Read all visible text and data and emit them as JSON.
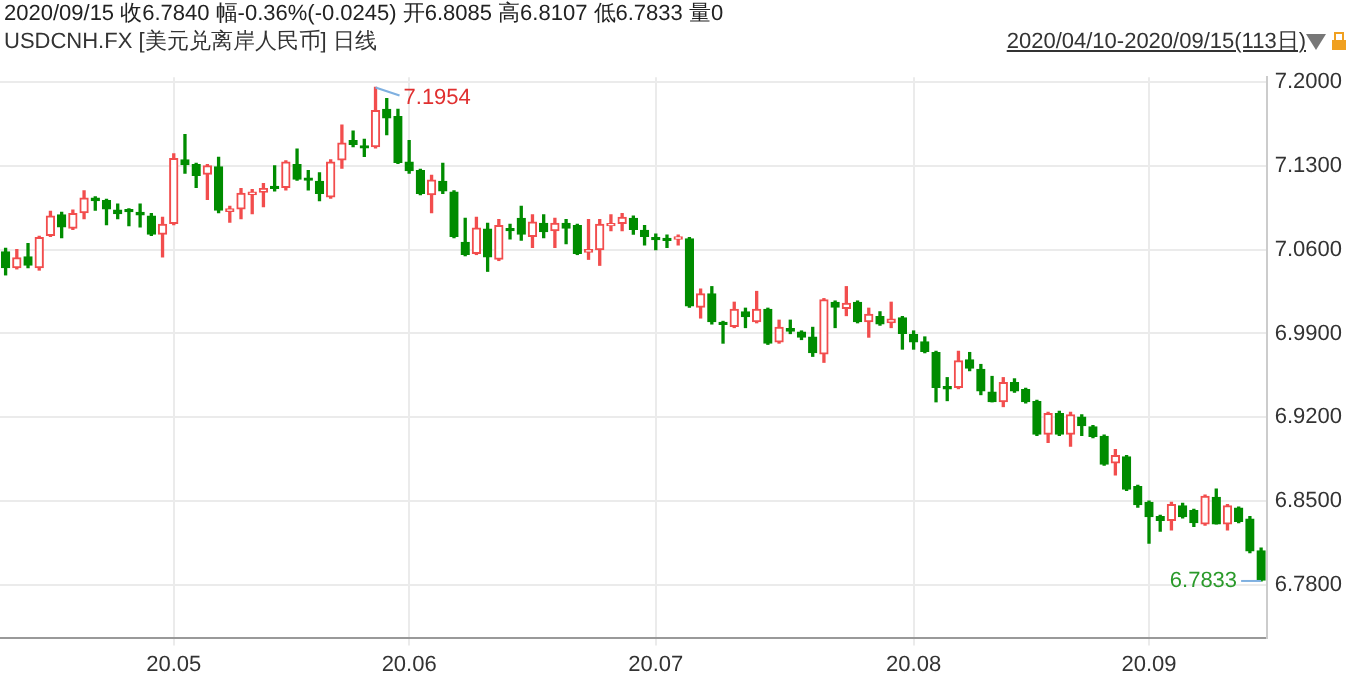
{
  "chart_data": {
    "type": "candlestick",
    "title": "USDCNH.FX [美元兑离岸人民币] 日线",
    "subtitle": "2020/09/15 收6.7840 幅-0.36%(-0.0245) 开6.8085 高6.8107 低6.7833 量0",
    "annotations": [
      "2020/04/10-2020/09/15(113日)",
      "7.1954",
      "6.7833"
    ],
    "categories": [
      null,
      null,
      null,
      null,
      null,
      null,
      null,
      null,
      null,
      null,
      null,
      null,
      null,
      null,
      null,
      "20.05",
      null,
      null,
      null,
      null,
      null,
      null,
      null,
      null,
      null,
      null,
      null,
      null,
      null,
      null,
      null,
      null,
      null,
      null,
      null,
      null,
      "20.06",
      null,
      null,
      null,
      null,
      null,
      null,
      null,
      null,
      null,
      null,
      null,
      null,
      null,
      null,
      null,
      null,
      null,
      null,
      null,
      null,
      null,
      "20.07",
      null,
      null,
      null,
      null,
      null,
      null,
      null,
      null,
      null,
      null,
      null,
      null,
      null,
      null,
      null,
      null,
      null,
      null,
      null,
      null,
      null,
      null,
      "20.08",
      null,
      null,
      null,
      null,
      null,
      null,
      null,
      null,
      null,
      null,
      null,
      null,
      null,
      null,
      null,
      null,
      null,
      null,
      null,
      null,
      "20.09",
      null,
      null,
      null,
      null,
      null,
      null,
      null,
      null,
      null,
      null
    ],
    "ohlc": [
      [
        7.058,
        7.061,
        7.039,
        7.045
      ],
      [
        7.045,
        7.06,
        7.044,
        7.053
      ],
      [
        7.054,
        7.065,
        7.045,
        7.047
      ],
      [
        7.045,
        7.071,
        7.043,
        7.07
      ],
      [
        7.072,
        7.092,
        7.071,
        7.088
      ],
      [
        7.089,
        7.091,
        7.07,
        7.079
      ],
      [
        7.078,
        7.093,
        7.077,
        7.09
      ],
      [
        7.091,
        7.109,
        7.086,
        7.103
      ],
      [
        7.103,
        7.104,
        7.093,
        7.101
      ],
      [
        7.101,
        7.102,
        7.081,
        7.094
      ],
      [
        7.093,
        7.098,
        7.086,
        7.09
      ],
      [
        7.0922,
        7.094,
        7.08,
        7.0918
      ],
      [
        7.091,
        7.098,
        7.079,
        7.089
      ],
      [
        7.088,
        7.09,
        7.072,
        7.073
      ],
      [
        7.073,
        7.087,
        7.054,
        7.081
      ],
      [
        7.082,
        7.14,
        7.081,
        7.136
      ],
      [
        7.135,
        7.156,
        7.124,
        7.131
      ],
      [
        7.131,
        7.132,
        7.112,
        7.122
      ],
      [
        7.123,
        7.131,
        7.102,
        7.13
      ],
      [
        7.129,
        7.137,
        7.091,
        7.093
      ],
      [
        7.092,
        7.096,
        7.083,
        7.094
      ],
      [
        7.094,
        7.111,
        7.086,
        7.107
      ],
      [
        7.106,
        7.11,
        7.09,
        7.108
      ],
      [
        7.108,
        7.115,
        7.096,
        7.111
      ],
      [
        7.1113,
        7.13,
        7.109,
        7.1112
      ],
      [
        7.112,
        7.134,
        7.11,
        7.133
      ],
      [
        7.131,
        7.144,
        7.118,
        7.119
      ],
      [
        7.1182,
        7.126,
        7.11,
        7.118
      ],
      [
        7.117,
        7.124,
        7.101,
        7.107
      ],
      [
        7.104,
        7.135,
        7.103,
        7.133
      ],
      [
        7.135,
        7.164,
        7.128,
        7.149
      ],
      [
        7.151,
        7.159,
        7.146,
        7.148
      ],
      [
        7.146,
        7.152,
        7.138,
        7.145
      ],
      [
        7.146,
        7.1954,
        7.145,
        7.176
      ],
      [
        7.177,
        7.186,
        7.156,
        7.17
      ],
      [
        7.171,
        7.177,
        7.132,
        7.133
      ],
      [
        7.133,
        7.151,
        7.124,
        7.126
      ],
      [
        7.126,
        7.127,
        7.106,
        7.107
      ],
      [
        7.106,
        7.122,
        7.091,
        7.118
      ],
      [
        7.117,
        7.132,
        7.107,
        7.109
      ],
      [
        7.108,
        7.109,
        7.07,
        7.071
      ],
      [
        7.066,
        7.086,
        7.055,
        7.056
      ],
      [
        7.057,
        7.087,
        7.056,
        7.078
      ],
      [
        7.077,
        7.082,
        7.042,
        7.054
      ],
      [
        7.052,
        7.085,
        7.051,
        7.08
      ],
      [
        7.0761,
        7.081,
        7.069,
        7.0759
      ],
      [
        7.086,
        7.096,
        7.068,
        7.073
      ],
      [
        7.071,
        7.089,
        7.062,
        7.083
      ],
      [
        7.082,
        7.089,
        7.07,
        7.075
      ],
      [
        7.076,
        7.086,
        7.062,
        7.082
      ],
      [
        7.082,
        7.085,
        7.065,
        7.078
      ],
      [
        7.08,
        7.081,
        7.056,
        7.057
      ],
      [
        7.058,
        7.085,
        7.052,
        7.06
      ],
      [
        7.06,
        7.085,
        7.047,
        7.081
      ],
      [
        7.08,
        7.089,
        7.076,
        7.081
      ],
      [
        7.082,
        7.09,
        7.076,
        7.087
      ],
      [
        7.086,
        7.088,
        7.073,
        7.077
      ],
      [
        7.076,
        7.08,
        7.064,
        7.071
      ],
      [
        7.0686,
        7.073,
        7.06,
        7.0684
      ],
      [
        7.068,
        7.072,
        7.062,
        7.0678
      ],
      [
        7.0689,
        7.072,
        7.064,
        7.0692
      ],
      [
        7.069,
        7.07,
        7.012,
        7.013
      ],
      [
        7.012,
        7.027,
        7.003,
        7.023
      ],
      [
        7.023,
        7.029,
        6.998,
        7.0
      ],
      [
        6.9978,
        7.0,
        6.982,
        6.9976
      ],
      [
        6.996,
        7.016,
        6.995,
        7.01
      ],
      [
        7.008,
        7.011,
        6.995,
        7.004
      ],
      [
        7.0,
        7.025,
        6.999,
        7.01
      ],
      [
        7.01,
        7.011,
        6.981,
        6.982
      ],
      [
        6.983,
        7.001,
        6.982,
        6.995
      ],
      [
        6.994,
        7.001,
        6.99,
        6.992
      ],
      [
        6.991,
        6.992,
        6.985,
        6.987
      ],
      [
        6.987,
        6.995,
        6.971,
        6.974
      ],
      [
        6.973,
        7.019,
        6.966,
        7.018
      ],
      [
        7.016,
        7.017,
        6.995,
        7.012
      ],
      [
        7.011,
        7.029,
        7.005,
        7.015
      ],
      [
        7.016,
        7.017,
        6.999,
        7.0
      ],
      [
        7.0,
        7.011,
        6.987,
        7.006
      ],
      [
        7.004,
        7.008,
        6.997,
        6.998
      ],
      [
        6.999,
        7.016,
        6.995,
        7.002
      ],
      [
        7.003,
        7.004,
        6.977,
        6.99
      ],
      [
        6.989,
        6.992,
        6.977,
        6.983
      ],
      [
        6.983,
        6.987,
        6.974,
        6.975
      ],
      [
        6.974,
        6.975,
        6.933,
        6.945
      ],
      [
        6.944,
        6.953,
        6.934,
        6.9438
      ],
      [
        6.945,
        6.975,
        6.944,
        6.967
      ],
      [
        6.968,
        6.974,
        6.959,
        6.961
      ],
      [
        6.96,
        6.964,
        6.939,
        6.942
      ],
      [
        6.941,
        6.954,
        6.933,
        6.933
      ],
      [
        6.933,
        6.953,
        6.929,
        6.949
      ],
      [
        6.949,
        6.952,
        6.941,
        6.942
      ],
      [
        6.943,
        6.944,
        6.932,
        6.933
      ],
      [
        6.933,
        6.934,
        6.905,
        6.906
      ],
      [
        6.906,
        6.924,
        6.899,
        6.923
      ],
      [
        6.923,
        6.925,
        6.905,
        6.906
      ],
      [
        6.906,
        6.924,
        6.896,
        6.922
      ],
      [
        6.92,
        6.922,
        6.905,
        6.913
      ],
      [
        6.912,
        6.913,
        6.903,
        6.904
      ],
      [
        6.904,
        6.905,
        6.88,
        6.881
      ],
      [
        6.882,
        6.893,
        6.872,
        6.888
      ],
      [
        6.887,
        6.888,
        6.859,
        6.86
      ],
      [
        6.862,
        6.863,
        6.845,
        6.847
      ],
      [
        6.849,
        6.85,
        6.815,
        6.837
      ],
      [
        6.837,
        6.838,
        6.825,
        6.834
      ],
      [
        6.834,
        6.849,
        6.826,
        6.847
      ],
      [
        6.846,
        6.848,
        6.836,
        6.837
      ],
      [
        6.842,
        6.843,
        6.829,
        6.832
      ],
      [
        6.831,
        6.855,
        6.83,
        6.854
      ],
      [
        6.853,
        6.86,
        6.831,
        6.831
      ],
      [
        6.831,
        6.847,
        6.826,
        6.846
      ],
      [
        6.844,
        6.845,
        6.832,
        6.833
      ],
      [
        6.835,
        6.837,
        6.807,
        6.8085
      ],
      [
        6.8085,
        6.8107,
        6.7833,
        6.784
      ]
    ],
    "colors": [
      "#008c00",
      "#f24d4d",
      "#008c00",
      "#f24d4d",
      "#f24d4d",
      "#008c00",
      "#f24d4d",
      "#f24d4d",
      "#008c00",
      "#008c00",
      "#008c00",
      "#008c00",
      "#008c00",
      "#008c00",
      "#f24d4d",
      "#f24d4d",
      "#008c00",
      "#008c00",
      "#f24d4d",
      "#008c00",
      "#f24d4d",
      "#f24d4d",
      "#f24d4d",
      "#f24d4d",
      "#008c00",
      "#f24d4d",
      "#008c00",
      "#008c00",
      "#008c00",
      "#f24d4d",
      "#f24d4d",
      "#008c00",
      "#008c00",
      "#f24d4d",
      "#008c00",
      "#008c00",
      "#008c00",
      "#008c00",
      "#f24d4d",
      "#008c00",
      "#008c00",
      "#008c00",
      "#f24d4d",
      "#008c00",
      "#f24d4d",
      "#008c00",
      "#008c00",
      "#f24d4d",
      "#008c00",
      "#f24d4d",
      "#008c00",
      "#008c00",
      "#f24d4d",
      "#f24d4d",
      "#f24d4d",
      "#f24d4d",
      "#008c00",
      "#008c00",
      "#008c00",
      "#008c00",
      "#f24d4d",
      "#008c00",
      "#f24d4d",
      "#008c00",
      "#008c00",
      "#f24d4d",
      "#008c00",
      "#f24d4d",
      "#008c00",
      "#f24d4d",
      "#008c00",
      "#008c00",
      "#008c00",
      "#f24d4d",
      "#008c00",
      "#f24d4d",
      "#008c00",
      "#f24d4d",
      "#008c00",
      "#f24d4d",
      "#008c00",
      "#008c00",
      "#008c00",
      "#008c00",
      "#008c00",
      "#f24d4d",
      "#008c00",
      "#008c00",
      "#008c00",
      "#f24d4d",
      "#008c00",
      "#008c00",
      "#008c00",
      "#f24d4d",
      "#008c00",
      "#f24d4d",
      "#008c00",
      "#008c00",
      "#008c00",
      "#f24d4d",
      "#008c00",
      "#008c00",
      "#008c00",
      "#008c00",
      "#f24d4d",
      "#008c00",
      "#008c00",
      "#f24d4d",
      "#008c00",
      "#f24d4d",
      "#008c00",
      "#008c00",
      "#008c00"
    ],
    "ylim": [
      6.736,
      7.204
    ],
    "yticks": [
      {
        "value": 6.78,
        "label": "6.7800"
      },
      {
        "value": 6.85,
        "label": "6.8500"
      },
      {
        "value": 6.92,
        "label": "6.9200"
      },
      {
        "value": 6.99,
        "label": "6.9900"
      },
      {
        "value": 7.06,
        "label": "7.0600"
      },
      {
        "value": 7.13,
        "label": "7.1300"
      },
      {
        "value": 7.2,
        "label": "7.2000"
      }
    ],
    "grid": true
  }
}
